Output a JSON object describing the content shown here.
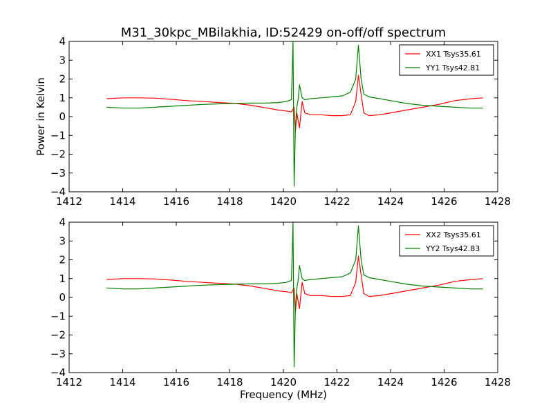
{
  "figure": {
    "title": "M31_30kpc_MBilakhia, ID:52429 on-off/off spectrum",
    "xlabel": "Frequency (MHz)",
    "ylabel": "Power in Kelvin"
  },
  "chart_data": [
    {
      "type": "line",
      "title": "M31_30kpc_MBilakhia, ID:52429 on-off/off spectrum",
      "xlabel": "",
      "ylabel": "Power in Kelvin",
      "xlim": [
        1412,
        1428
      ],
      "ylim": [
        -4,
        4
      ],
      "xticks": [
        "1412",
        "1414",
        "1416",
        "1418",
        "1420",
        "1422",
        "1424",
        "1426",
        "1428"
      ],
      "yticks": [
        "4",
        "3",
        "2",
        "1",
        "0",
        "−1",
        "−2",
        "−3",
        "−4"
      ],
      "grid": false,
      "legend_position": "top-right",
      "series": [
        {
          "name": "XX1 Tsys35.61",
          "color": "#ff0000",
          "x": [
            1413.4,
            1414.0,
            1414.6,
            1415.2,
            1415.8,
            1416.4,
            1417.0,
            1417.6,
            1418.2,
            1418.8,
            1419.4,
            1419.8,
            1420.1,
            1420.3,
            1420.4,
            1420.45,
            1420.5,
            1420.6,
            1420.7,
            1420.8,
            1421.0,
            1421.4,
            1421.8,
            1422.2,
            1422.5,
            1422.7,
            1422.8,
            1422.9,
            1423.0,
            1423.2,
            1423.6,
            1424.0,
            1424.6,
            1425.2,
            1425.8,
            1426.4,
            1427.0,
            1427.45
          ],
          "y": [
            0.95,
            1.0,
            1.0,
            0.98,
            0.92,
            0.85,
            0.8,
            0.75,
            0.7,
            0.6,
            0.45,
            0.35,
            0.3,
            0.25,
            0.5,
            -0.8,
            0.2,
            -0.6,
            0.8,
            0.2,
            0.1,
            0.1,
            0.05,
            0.05,
            0.1,
            0.8,
            2.2,
            1.2,
            0.2,
            0.05,
            0.1,
            0.2,
            0.35,
            0.5,
            0.65,
            0.85,
            0.95,
            1.0
          ]
        },
        {
          "name": "YY1 Tsys42.81",
          "color": "#008000",
          "x": [
            1413.4,
            1414.0,
            1414.6,
            1415.2,
            1415.8,
            1416.4,
            1417.0,
            1417.6,
            1418.2,
            1418.8,
            1419.4,
            1419.8,
            1420.1,
            1420.3,
            1420.36,
            1420.4,
            1420.45,
            1420.5,
            1420.55,
            1420.6,
            1420.7,
            1420.8,
            1421.0,
            1421.4,
            1421.8,
            1422.2,
            1422.5,
            1422.7,
            1422.8,
            1422.9,
            1423.0,
            1423.2,
            1423.6,
            1424.0,
            1424.6,
            1425.2,
            1425.8,
            1426.4,
            1427.0,
            1427.45
          ],
          "y": [
            0.5,
            0.45,
            0.45,
            0.5,
            0.55,
            0.6,
            0.65,
            0.68,
            0.7,
            0.72,
            0.72,
            0.75,
            0.8,
            0.9,
            4.0,
            -3.7,
            -0.5,
            0.5,
            0.9,
            1.7,
            1.0,
            0.9,
            0.95,
            1.0,
            1.05,
            1.1,
            1.3,
            2.0,
            3.8,
            2.0,
            1.2,
            1.05,
            0.95,
            0.85,
            0.7,
            0.6,
            0.55,
            0.5,
            0.45,
            0.45
          ]
        }
      ]
    },
    {
      "type": "line",
      "title": "",
      "xlabel": "Frequency (MHz)",
      "ylabel": "",
      "xlim": [
        1412,
        1428
      ],
      "ylim": [
        -4,
        4
      ],
      "xticks": [
        "1412",
        "1414",
        "1416",
        "1418",
        "1420",
        "1422",
        "1424",
        "1426",
        "1428"
      ],
      "yticks": [
        "4",
        "3",
        "2",
        "1",
        "0",
        "−1",
        "−2",
        "−3",
        "−4"
      ],
      "grid": false,
      "legend_position": "top-right",
      "series": [
        {
          "name": "XX2 Tsys35.61",
          "color": "#ff0000",
          "x": [
            1413.4,
            1414.0,
            1414.6,
            1415.2,
            1415.8,
            1416.4,
            1417.0,
            1417.6,
            1418.2,
            1418.8,
            1419.4,
            1419.8,
            1420.1,
            1420.3,
            1420.4,
            1420.45,
            1420.5,
            1420.6,
            1420.7,
            1420.8,
            1421.0,
            1421.4,
            1421.8,
            1422.2,
            1422.5,
            1422.7,
            1422.8,
            1422.9,
            1423.0,
            1423.2,
            1423.6,
            1424.0,
            1424.6,
            1425.2,
            1425.8,
            1426.4,
            1427.0,
            1427.45
          ],
          "y": [
            0.95,
            1.0,
            1.0,
            0.98,
            0.92,
            0.85,
            0.8,
            0.75,
            0.7,
            0.6,
            0.45,
            0.35,
            0.3,
            0.25,
            0.5,
            -0.8,
            0.2,
            -0.6,
            0.8,
            0.2,
            0.1,
            0.1,
            0.05,
            0.05,
            0.1,
            0.8,
            2.2,
            1.2,
            0.2,
            0.05,
            0.1,
            0.2,
            0.35,
            0.5,
            0.65,
            0.85,
            0.95,
            1.0
          ]
        },
        {
          "name": "YY2 Tsys42.83",
          "color": "#008000",
          "x": [
            1413.4,
            1414.0,
            1414.6,
            1415.2,
            1415.8,
            1416.4,
            1417.0,
            1417.6,
            1418.2,
            1418.8,
            1419.4,
            1419.8,
            1420.1,
            1420.3,
            1420.36,
            1420.4,
            1420.45,
            1420.5,
            1420.55,
            1420.6,
            1420.7,
            1420.8,
            1421.0,
            1421.4,
            1421.8,
            1422.2,
            1422.5,
            1422.7,
            1422.8,
            1422.9,
            1423.0,
            1423.2,
            1423.6,
            1424.0,
            1424.6,
            1425.2,
            1425.8,
            1426.4,
            1427.0,
            1427.45
          ],
          "y": [
            0.5,
            0.45,
            0.45,
            0.5,
            0.55,
            0.6,
            0.65,
            0.68,
            0.7,
            0.72,
            0.72,
            0.75,
            0.8,
            0.9,
            4.0,
            -3.7,
            -0.5,
            0.5,
            0.9,
            1.7,
            1.0,
            0.9,
            0.95,
            1.0,
            1.05,
            1.1,
            1.3,
            2.0,
            3.8,
            2.0,
            1.2,
            1.05,
            0.95,
            0.85,
            0.7,
            0.6,
            0.55,
            0.5,
            0.45,
            0.45
          ]
        }
      ]
    }
  ]
}
